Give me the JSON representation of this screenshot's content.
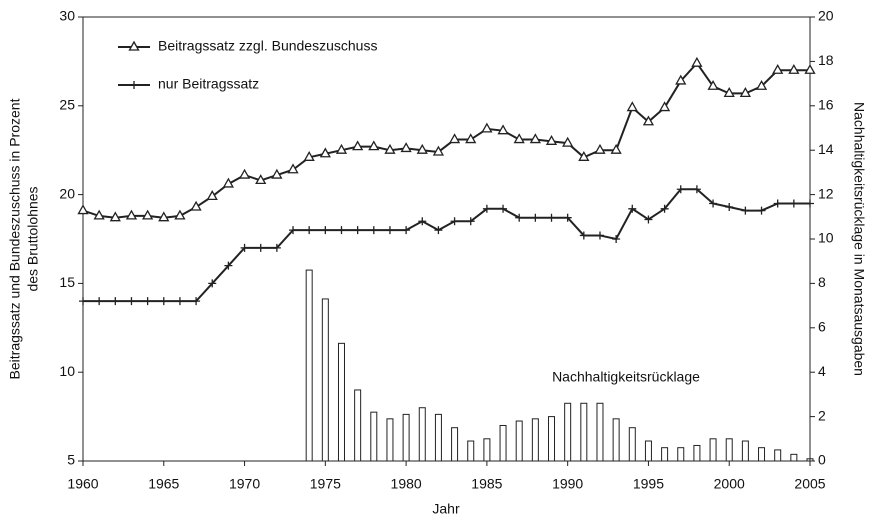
{
  "chart_data": {
    "type": "line_bar",
    "xlabel": "Jahr",
    "ylabel": [
      "Beitragssatz und Bundeszuschuss in Prozent",
      "des Bruttolohnes"
    ],
    "y2label": "Nachhaltigkeitsrücklage in Monatsausgaben",
    "x": [
      1960,
      1961,
      1962,
      1963,
      1964,
      1965,
      1966,
      1967,
      1968,
      1969,
      1970,
      1971,
      1972,
      1973,
      1974,
      1975,
      1976,
      1977,
      1978,
      1979,
      1980,
      1981,
      1982,
      1983,
      1984,
      1985,
      1986,
      1987,
      1988,
      1989,
      1990,
      1991,
      1992,
      1993,
      1994,
      1995,
      1996,
      1997,
      1998,
      1999,
      2000,
      2001,
      2002,
      2003,
      2004,
      2005
    ],
    "xlim": [
      1960,
      2005
    ],
    "xticks": [
      1960,
      1965,
      1970,
      1975,
      1980,
      1985,
      1990,
      1995,
      2000,
      2005
    ],
    "ylim": [
      5,
      30
    ],
    "yticks": [
      5,
      10,
      15,
      20,
      25,
      30
    ],
    "y2lim": [
      0,
      20
    ],
    "y2ticks": [
      0,
      2,
      4,
      6,
      8,
      10,
      12,
      14,
      16,
      18,
      20
    ],
    "legend": "upper left",
    "series": [
      {
        "name": "Beitragssatz zzgl. Bundeszuschuss",
        "color": "#222222",
        "kind": "line",
        "marker": "triangle",
        "values": [
          19.1,
          18.8,
          18.7,
          18.8,
          18.8,
          18.7,
          18.8,
          19.3,
          19.9,
          20.6,
          21.1,
          20.8,
          21.1,
          21.4,
          22.1,
          22.3,
          22.5,
          22.7,
          22.7,
          22.5,
          22.6,
          22.5,
          22.4,
          23.1,
          23.1,
          23.7,
          23.6,
          23.1,
          23.1,
          23.0,
          22.9,
          22.1,
          22.5,
          22.5,
          24.9,
          24.1,
          24.9,
          26.4,
          27.4,
          26.1,
          25.7,
          25.7,
          26.1,
          27.0,
          27.0,
          27.0
        ]
      },
      {
        "name": "nur Beitragssatz",
        "color": "#222222",
        "kind": "line",
        "marker": "plus",
        "values": [
          14,
          14,
          14,
          14,
          14,
          14,
          14,
          14,
          15,
          16,
          17,
          17,
          17,
          18,
          18,
          18,
          18,
          18,
          18,
          18,
          18,
          18.5,
          18,
          18.5,
          18.5,
          19.2,
          19.2,
          18.7,
          18.7,
          18.7,
          18.7,
          17.7,
          17.7,
          17.5,
          19.2,
          18.6,
          19.2,
          20.3,
          20.3,
          19.5,
          19.3,
          19.1,
          19.1,
          19.5,
          19.5,
          19.5
        ]
      },
      {
        "name": "Nachhaltigkeitsrücklage",
        "color": "#222222",
        "kind": "bar",
        "axis": "y2",
        "values": [
          null,
          null,
          null,
          null,
          null,
          null,
          null,
          null,
          null,
          null,
          null,
          null,
          null,
          null,
          8.6,
          7.3,
          5.3,
          3.2,
          2.2,
          1.9,
          2.1,
          2.4,
          2.1,
          1.5,
          0.9,
          1.0,
          1.6,
          1.8,
          1.9,
          2.0,
          2.6,
          2.6,
          2.6,
          1.9,
          1.5,
          0.9,
          0.6,
          0.6,
          0.7,
          1.0,
          1.0,
          0.9,
          0.6,
          0.5,
          0.3,
          0.1
        ]
      }
    ]
  }
}
